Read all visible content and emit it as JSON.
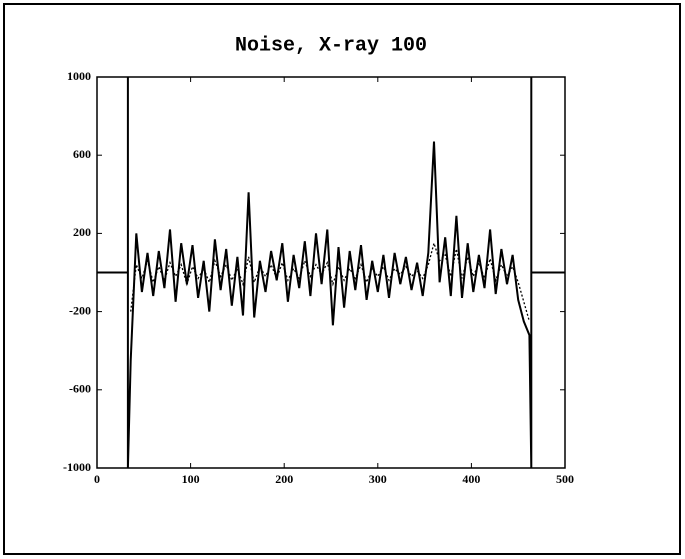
{
  "chart_data": {
    "type": "line",
    "title": "Noise, X-ray 100",
    "xlim": [
      0,
      500
    ],
    "ylim": [
      -1000,
      1000
    ],
    "xticks": [
      0,
      100,
      200,
      300,
      400,
      500
    ],
    "yticks": [
      1000,
      600,
      200,
      -200,
      -600,
      -1000
    ],
    "series": [
      {
        "color": "#000000",
        "style": "solid",
        "x": [
          0,
          33,
          33,
          33,
          36,
          42,
          48,
          54,
          60,
          66,
          72,
          78,
          84,
          90,
          96,
          102,
          108,
          114,
          120,
          126,
          132,
          138,
          144,
          150,
          156,
          162,
          168,
          174,
          180,
          186,
          192,
          198,
          204,
          210,
          216,
          222,
          228,
          234,
          240,
          246,
          252,
          258,
          264,
          270,
          276,
          282,
          288,
          294,
          300,
          306,
          312,
          318,
          324,
          330,
          336,
          342,
          348,
          354,
          360,
          366,
          372,
          378,
          384,
          390,
          396,
          402,
          408,
          414,
          420,
          426,
          432,
          438,
          444,
          450,
          456,
          462,
          464,
          464,
          464,
          500
        ],
        "values": [
          0,
          0,
          1000,
          -1000,
          -450,
          200,
          -100,
          100,
          -120,
          110,
          -80,
          220,
          -150,
          150,
          -60,
          140,
          -130,
          60,
          -200,
          170,
          -90,
          120,
          -170,
          80,
          -220,
          410,
          -230,
          60,
          -100,
          110,
          -40,
          150,
          -150,
          90,
          -80,
          160,
          -120,
          200,
          -60,
          220,
          -270,
          130,
          -180,
          110,
          -90,
          140,
          -140,
          60,
          -100,
          90,
          -130,
          100,
          -60,
          80,
          -90,
          50,
          -120,
          100,
          670,
          -50,
          180,
          -120,
          290,
          -130,
          150,
          -100,
          90,
          -80,
          220,
          -110,
          120,
          -60,
          90,
          -140,
          -250,
          -320,
          -1000,
          1000,
          0,
          0
        ]
      },
      {
        "color": "#000000",
        "style": "dotted",
        "x": [
          36,
          42,
          48,
          54,
          60,
          66,
          72,
          78,
          84,
          90,
          96,
          102,
          108,
          114,
          120,
          126,
          132,
          138,
          144,
          150,
          156,
          162,
          168,
          174,
          180,
          186,
          192,
          198,
          204,
          210,
          216,
          222,
          228,
          234,
          240,
          246,
          252,
          258,
          264,
          270,
          276,
          282,
          288,
          294,
          300,
          306,
          312,
          318,
          324,
          330,
          336,
          342,
          348,
          354,
          360,
          366,
          372,
          378,
          384,
          390,
          396,
          402,
          408,
          414,
          420,
          426,
          432,
          438,
          444,
          450,
          456,
          462
        ],
        "values": [
          -200,
          40,
          -30,
          60,
          -50,
          30,
          -40,
          50,
          -20,
          40,
          -60,
          30,
          -30,
          20,
          -50,
          60,
          -20,
          40,
          -40,
          20,
          -60,
          80,
          -50,
          30,
          -20,
          40,
          -30,
          50,
          -40,
          20,
          -30,
          60,
          -20,
          40,
          -10,
          50,
          -60,
          30,
          -40,
          20,
          -30,
          40,
          -50,
          20,
          -20,
          30,
          -40,
          20,
          -10,
          30,
          -20,
          10,
          -30,
          40,
          150,
          60,
          90,
          -20,
          120,
          -30,
          80,
          -20,
          50,
          -30,
          70,
          -40,
          40,
          -20,
          30,
          -50,
          -150,
          -250
        ]
      }
    ]
  }
}
